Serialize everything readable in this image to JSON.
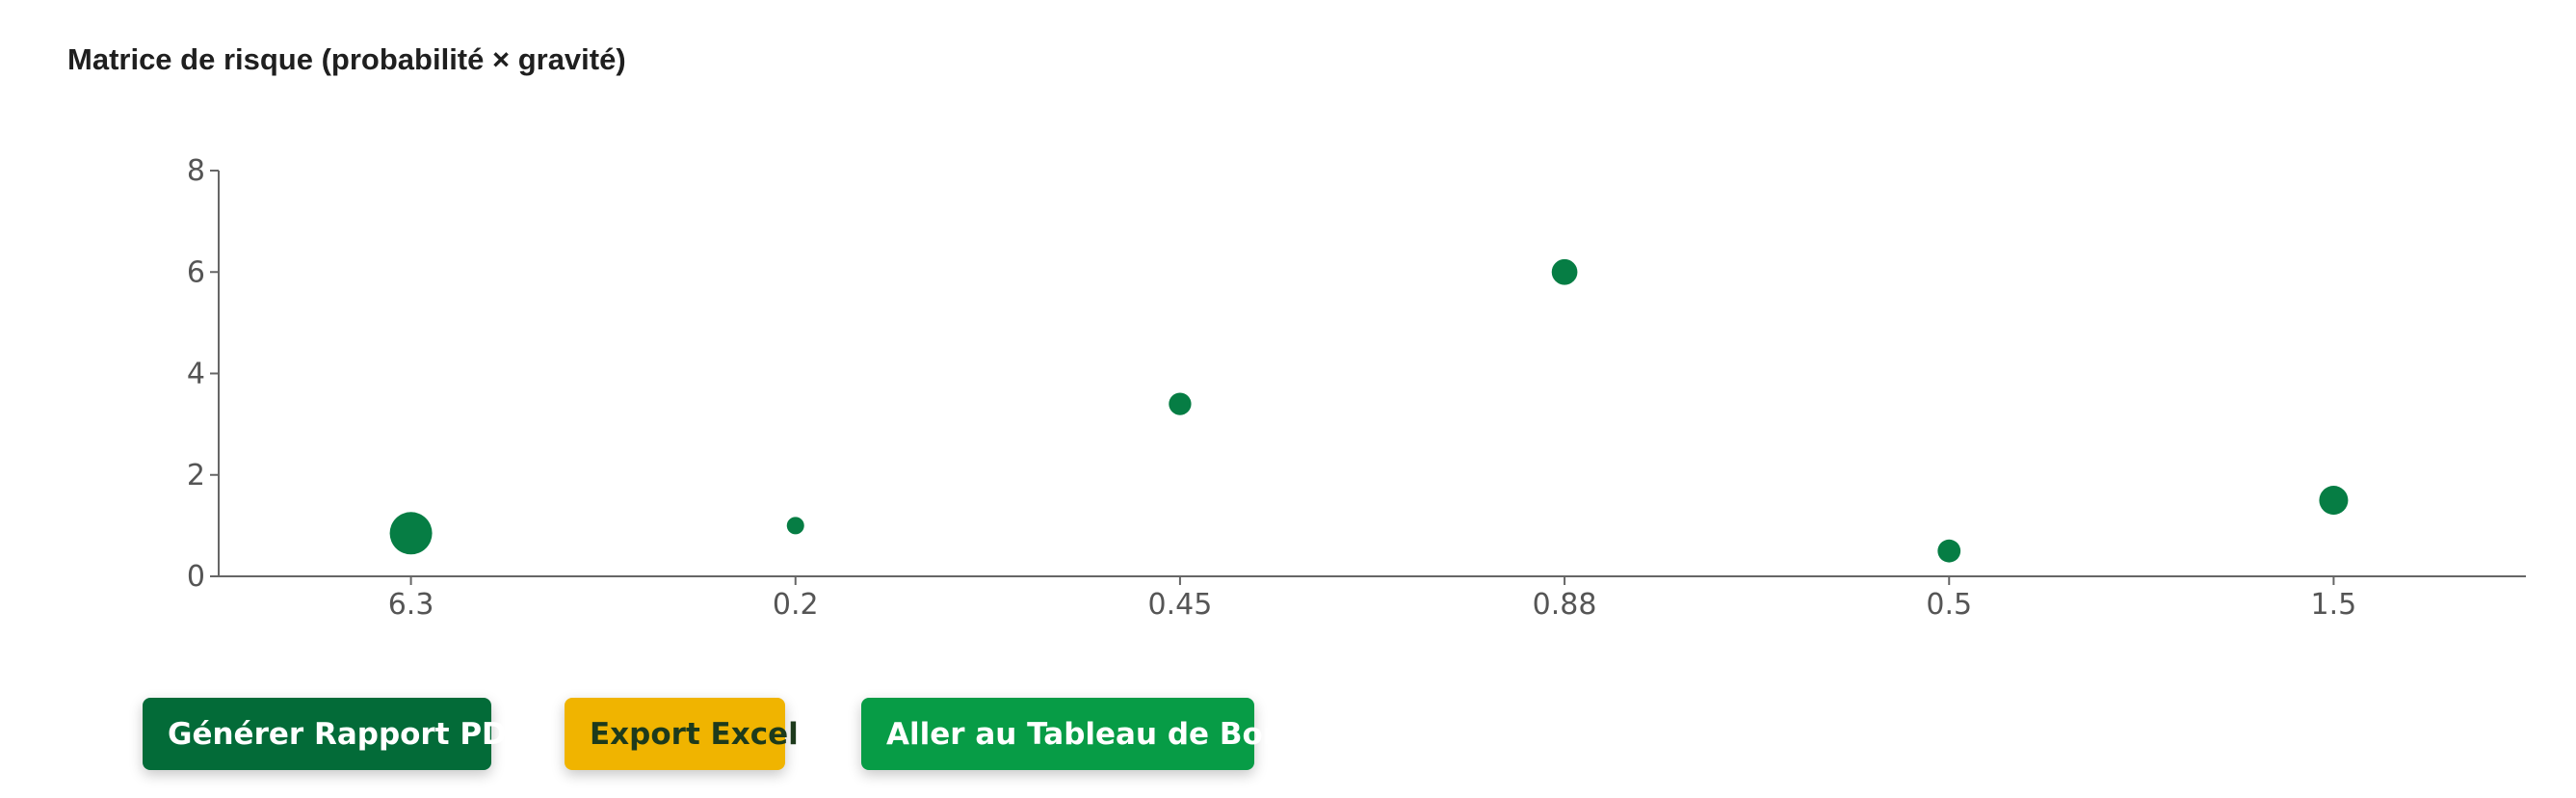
{
  "chart_data": {
    "type": "scatter",
    "title": "Matrice de risque (probabilité × gravité)",
    "categories": [
      "6.3",
      "0.2",
      "0.45",
      "0.88",
      "0.5",
      "1.5"
    ],
    "values": [
      0.85,
      1.0,
      3.4,
      6.0,
      0.5,
      1.5
    ],
    "sizes": [
      6.3,
      0.2,
      0.45,
      0.88,
      0.5,
      1.5
    ],
    "ylim": [
      0,
      8
    ],
    "yticks": [
      "0",
      "2",
      "4",
      "6",
      "8"
    ],
    "grid": false,
    "point_color": "#067d44"
  },
  "actions": {
    "pdf_label": "Générer Rapport PDF",
    "excel_label": "Export Excel",
    "dashboard_label": "Aller au Tableau de Bord"
  }
}
